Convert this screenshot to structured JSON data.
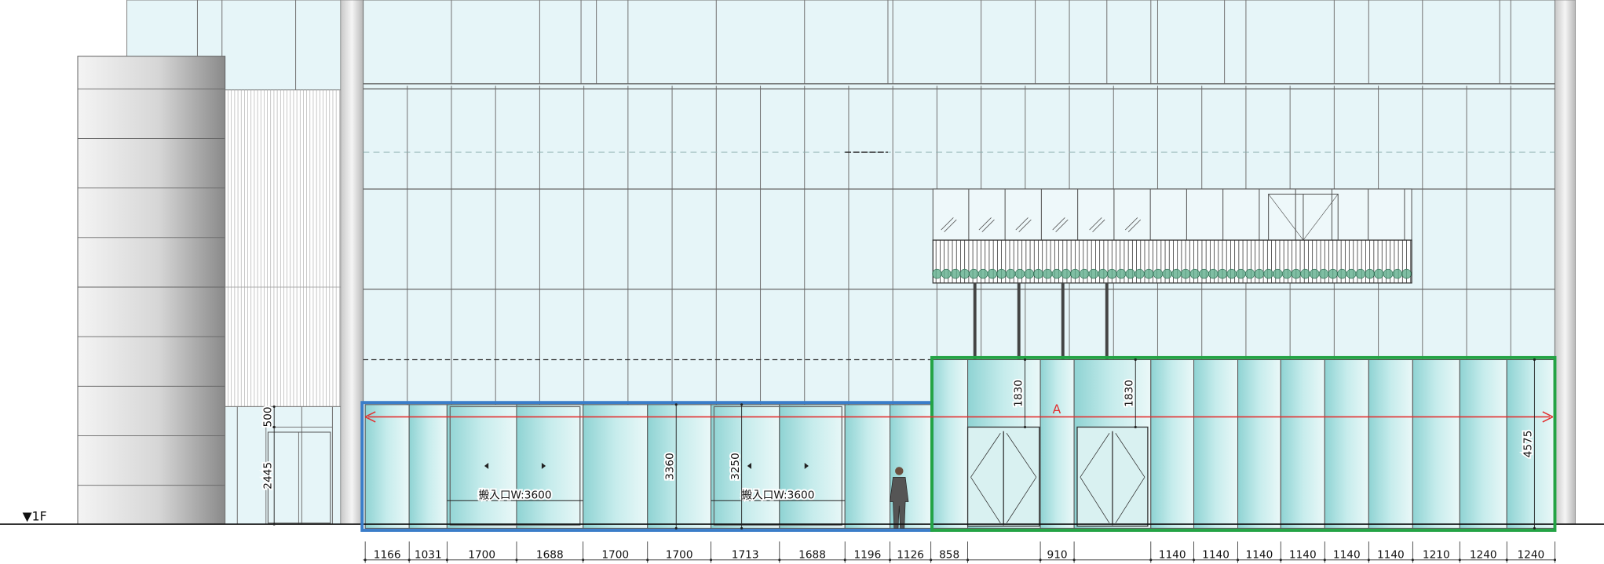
{
  "level_label": "▼1F",
  "section_label": "A",
  "loading_entrances": [
    "搬入口W:3600",
    "搬入口W:3600"
  ],
  "vertical_dimensions": [
    500,
    2445,
    3360,
    3250,
    1830,
    1830,
    4575
  ],
  "bottom_dimensions": [
    1166,
    1031,
    1700,
    1688,
    1700,
    1700,
    1713,
    1688,
    1196,
    1126,
    858,
    910,
    1140,
    1140,
    1140,
    1140,
    1140,
    1140,
    1210,
    1240,
    1240
  ]
}
